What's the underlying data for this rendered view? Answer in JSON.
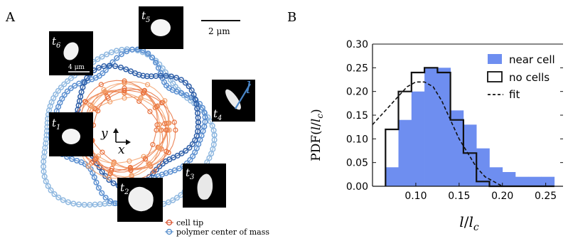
{
  "panel_a": {
    "label": "A",
    "scale_bar": "2 μm",
    "snapshots": [
      {
        "t": "t",
        "sub": "1"
      },
      {
        "t": "t",
        "sub": "2"
      },
      {
        "t": "t",
        "sub": "3"
      },
      {
        "t": "t",
        "sub": "4"
      },
      {
        "t": "t",
        "sub": "5"
      },
      {
        "t": "t",
        "sub": "6"
      }
    ],
    "inset_scale": "4 μm",
    "length_symbol": "l",
    "axis_x": "x",
    "axis_y": "y",
    "legend": [
      {
        "label": "cell tip",
        "color": "#d9502c"
      },
      {
        "label": "polymer center of mass",
        "color": "#4a86c8"
      }
    ],
    "colors": {
      "tip": "#e8703c",
      "tip_light": "#f3a06a",
      "polymer": "#5b8fd0",
      "polymer_dark": "#2f5fa8",
      "polymer_light": "#8fb8e0"
    }
  },
  "panel_b": {
    "label": "B",
    "chart_data": {
      "type": "bar",
      "xlabel": "l/l_c",
      "ylabel": "PDF(l/l_c)",
      "xlim": [
        0.05,
        0.27
      ],
      "ylim": [
        0,
        0.3
      ],
      "xticks": [
        "0.10",
        "0.15",
        "0.20",
        "0.25"
      ],
      "yticks": [
        "0.00",
        "0.05",
        "0.10",
        "0.15",
        "0.20",
        "0.25",
        "0.30"
      ],
      "bin_edges": [
        0.065,
        0.08,
        0.095,
        0.11,
        0.125,
        0.14,
        0.155,
        0.17,
        0.185,
        0.2,
        0.215,
        0.23,
        0.245,
        0.26
      ],
      "series": [
        {
          "name": "near cell",
          "style": "filled",
          "color": "#6e8ef0",
          "values": [
            0.04,
            0.14,
            0.2,
            0.25,
            0.25,
            0.16,
            0.13,
            0.08,
            0.04,
            0.03,
            0.02,
            0.02,
            0.02
          ]
        },
        {
          "name": "no cells",
          "style": "step",
          "color": "#111111",
          "values": [
            0.12,
            0.2,
            0.24,
            0.25,
            0.24,
            0.14,
            0.07,
            0.01,
            0.0,
            0.0,
            0.0,
            0.0,
            0.0
          ]
        },
        {
          "name": "fit",
          "style": "dashed",
          "color": "#111111",
          "x": [
            0.05,
            0.06,
            0.07,
            0.08,
            0.09,
            0.1,
            0.11,
            0.12,
            0.13,
            0.14,
            0.15,
            0.16,
            0.17,
            0.18,
            0.19,
            0.2,
            0.21
          ],
          "values": [
            0.13,
            0.15,
            0.17,
            0.19,
            0.21,
            0.22,
            0.22,
            0.21,
            0.18,
            0.14,
            0.1,
            0.07,
            0.04,
            0.02,
            0.01,
            0.0,
            0.0
          ]
        }
      ],
      "legend_position": "top-right"
    }
  }
}
